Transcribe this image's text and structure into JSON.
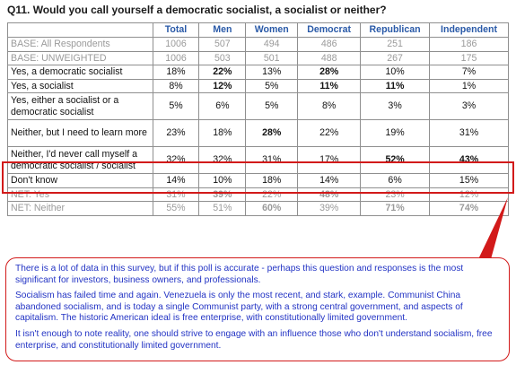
{
  "question": "Q11. Would you call yourself a democratic socialist, a socialist or neither?",
  "columns": [
    "",
    "Total",
    "Men",
    "Women",
    "Democrat",
    "Republican",
    "Independent"
  ],
  "rows": [
    {
      "label": "BASE: All Respondents",
      "values": [
        "1006",
        "507",
        "494",
        "486",
        "251",
        "186"
      ],
      "gray": true,
      "bold": []
    },
    {
      "label": "BASE: UNWEIGHTED",
      "values": [
        "1006",
        "503",
        "501",
        "488",
        "267",
        "175"
      ],
      "gray": true,
      "bold": []
    },
    {
      "label": "Yes, a democratic socialist",
      "values": [
        "18%",
        "22%",
        "13%",
        "28%",
        "10%",
        "7%"
      ],
      "gray": false,
      "bold": [
        1,
        3
      ]
    },
    {
      "label": "Yes, a socialist",
      "values": [
        "8%",
        "12%",
        "5%",
        "11%",
        "11%",
        "1%"
      ],
      "gray": false,
      "bold": [
        1,
        3,
        4
      ]
    },
    {
      "label": "Yes, either a socialist or a democratic socialist",
      "values": [
        "5%",
        "6%",
        "5%",
        "8%",
        "3%",
        "3%"
      ],
      "gray": false,
      "bold": []
    },
    {
      "label": "Neither, but I need to learn more",
      "values": [
        "23%",
        "18%",
        "28%",
        "22%",
        "19%",
        "31%"
      ],
      "gray": false,
      "bold": [
        2
      ]
    },
    {
      "label": "Neither, I'd never call myself a democratic socialist / socialist",
      "values": [
        "32%",
        "32%",
        "31%",
        "17%",
        "52%",
        "43%"
      ],
      "gray": false,
      "bold": [
        4,
        5
      ]
    },
    {
      "label": "Don't know",
      "values": [
        "14%",
        "10%",
        "18%",
        "14%",
        "6%",
        "15%"
      ],
      "gray": false,
      "bold": []
    },
    {
      "label": "NET: Yes",
      "values": [
        "31%",
        "39%",
        "22%",
        "48%",
        "23%",
        "12%"
      ],
      "gray": true,
      "bold": [
        1,
        3
      ]
    },
    {
      "label": "NET: Neither",
      "values": [
        "55%",
        "51%",
        "60%",
        "39%",
        "71%",
        "74%"
      ],
      "gray": true,
      "bold": [
        2,
        4,
        5
      ]
    }
  ],
  "callout": {
    "paragraphs": [
      "There is a lot of data in this survey, but if this poll is accurate - perhaps this question and responses is the most significant for investors, business owners, and professionals.",
      "Socialism has failed time and again.  Venezuela is only the most recent, and stark, example.  Communist China abandoned socialism, and is today a single Communist party, with a strong central government, and aspects of capitalism.  The historic American ideal is free enterprise, with constitutionally limited government.",
      "It isn't enough to note reality, one should strive to engage with an influence those who don't understand socialism, free enterprise, and constitutionally limited government."
    ]
  },
  "colors": {
    "header": "#2a5aa8",
    "annotation_red": "#d21a1a",
    "callout_text": "#2233c4",
    "gray_text": "#9a9a9a"
  }
}
